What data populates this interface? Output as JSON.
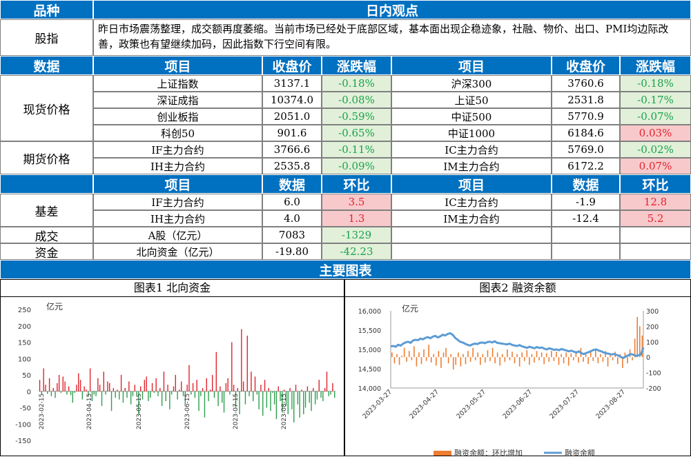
{
  "header": {
    "col1": "品种",
    "col2": "日内观点"
  },
  "stock_index_row": {
    "label": "股指",
    "text": "昨日市场震荡整理，成交额再度萎缩。当前市场已经处于底部区域，基本面出现企稳迹象，社融、物价、出口、PMI均边际改善，政策也有望继续加码，因此指数下行空间有限。"
  },
  "price_header": [
    "数据",
    "项目",
    "收盘价",
    "涨跌幅",
    "项目",
    "收盘价",
    "涨跌幅"
  ],
  "spot": {
    "label": "现货价格",
    "rows": [
      {
        "a": "上证指数",
        "ap": "3137.1",
        "ac": "-0.18%",
        "b": "沪深300",
        "bp": "3760.6",
        "bc": "-0.18%"
      },
      {
        "a": "深证成指",
        "ap": "10374.0",
        "ac": "-0.08%",
        "b": "上证50",
        "bp": "2531.8",
        "bc": "-0.17%"
      },
      {
        "a": "创业板指",
        "ap": "2051.0",
        "ac": "-0.59%",
        "b": "中证500",
        "bp": "5770.9",
        "bc": "-0.07%"
      },
      {
        "a": "科创50",
        "ap": "901.6",
        "ac": "-0.65%",
        "b": "中证1000",
        "bp": "6184.6",
        "bc": "0.03%"
      }
    ]
  },
  "futures": {
    "label": "期货价格",
    "rows": [
      {
        "a": "IF主力合约",
        "ap": "3766.6",
        "ac": "-0.11%",
        "b": "IC主力合约",
        "bp": "5769.0",
        "bc": "-0.02%"
      },
      {
        "a": "IH主力合约",
        "ap": "2535.8",
        "ac": "-0.09%",
        "b": "IM主力合约",
        "bp": "6172.2",
        "bc": "0.07%"
      }
    ]
  },
  "basis_header": [
    "项目",
    "数据",
    "环比",
    "项目",
    "数据",
    "环比"
  ],
  "basis": {
    "label": "基差",
    "rows": [
      {
        "a": "IF主力合约",
        "av": "6.0",
        "ac": "3.5",
        "b": "IC主力合约",
        "bv": "-1.9",
        "bc": "12.8"
      },
      {
        "a": "IH主力合约",
        "av": "4.0",
        "ac": "1.3",
        "b": "IM主力合约",
        "bv": "-12.4",
        "bc": "5.2"
      }
    ]
  },
  "volume": {
    "label": "成交",
    "item": "A股（亿元）",
    "value": "7083",
    "change": "-1329"
  },
  "funds": {
    "label": "资金",
    "item": "北向资金（亿元）",
    "value": "-19.80",
    "change": "-42.23"
  },
  "charts_header": "主要图表",
  "chart_data": [
    {
      "type": "bar",
      "title": "图表1  北向资金",
      "ylabel": "亿元",
      "ylim": [
        -150,
        250
      ],
      "yticks": [
        "250",
        "200",
        "150",
        "100",
        "50",
        "0",
        "-50",
        "-100",
        "-150"
      ],
      "xticks": [
        "2023-02-15",
        "2023-04-15",
        "2023-05-15",
        "2023-06-15",
        "2023-07-15",
        "2023-08-15"
      ],
      "colors": {
        "positive": "#e0232d",
        "negative": "#2e9e4d"
      },
      "values": [
        35,
        -10,
        70,
        20,
        -8,
        40,
        -15,
        10,
        -20,
        25,
        50,
        -5,
        45,
        30,
        -10,
        15,
        -12,
        -35,
        -5,
        20,
        55,
        35,
        -25,
        15,
        5,
        -15,
        70,
        -30,
        -10,
        -15,
        40,
        20,
        -45,
        60,
        -10,
        30,
        25,
        -60,
        10,
        -20,
        5,
        -25,
        50,
        -35,
        10,
        -20,
        30,
        -40,
        -15,
        20,
        -10,
        -70,
        15,
        -25,
        35,
        45,
        -30,
        -20,
        25,
        -5,
        40,
        -15,
        10,
        -45,
        60,
        -30,
        20,
        -55,
        -10,
        15,
        50,
        -25,
        5,
        30,
        -15,
        -40,
        20,
        80,
        -10,
        25,
        -20,
        35,
        -60,
        -15,
        10,
        -80,
        40,
        -30,
        5,
        50,
        -20,
        120,
        -45,
        15,
        -35,
        -65,
        25,
        40,
        -10,
        150,
        20,
        -50,
        10,
        -70,
        190,
        30,
        -40,
        170,
        -15,
        60,
        -30,
        45,
        -10,
        -55,
        20,
        -75,
        35,
        -50,
        10,
        -60,
        -5,
        -40,
        -85,
        15,
        -30,
        -65,
        5,
        -45,
        -70,
        10,
        -55,
        -95,
        20,
        -40,
        -80,
        5,
        -70,
        -50,
        15,
        -35,
        -60,
        10,
        -40,
        -25,
        35,
        -20,
        -30,
        10,
        60,
        -15,
        -10,
        25,
        -20
      ]
    },
    {
      "type": "bar+line",
      "title": "图表2  融资余额",
      "ylabel": "亿元",
      "ylim_left": [
        14000,
        16000
      ],
      "yticks_left": [
        "16,000",
        "15,500",
        "15,000",
        "14,500",
        "14,000"
      ],
      "ylim_right": [
        -200,
        300
      ],
      "yticks_right": [
        "300",
        "200",
        "100",
        "0",
        "-100",
        "-200"
      ],
      "xticks": [
        "2023-03-27",
        "2023-04-27",
        "2023-05-27",
        "2023-06-27",
        "2023-07-27",
        "2023-08-27"
      ],
      "legend": [
        "融资余额：环比增加",
        "融资余额"
      ],
      "colors": {
        "bars": "#ed7d31",
        "line": "#5b9bd5"
      },
      "balance": [
        15080,
        15090,
        15070,
        15120,
        15100,
        15150,
        15180,
        15200,
        15170,
        15230,
        15250,
        15240,
        15280,
        15260,
        15300,
        15320,
        15290,
        15330,
        15350,
        15310,
        15340,
        15380,
        15360,
        15400,
        15420,
        15380,
        15300,
        15250,
        15200,
        15180,
        15150,
        15120,
        15100,
        15130,
        15150,
        15140,
        15170,
        15180,
        15160,
        15190,
        15200,
        15180,
        15210,
        15170,
        15160,
        15150,
        15140,
        15130,
        15150,
        15120,
        15100,
        15090,
        15110,
        15080,
        15060,
        15040,
        15070,
        15050,
        15030,
        15060,
        15040,
        15050,
        15020,
        15000,
        15030,
        15010,
        14990,
        15000,
        14980,
        15010,
        14990,
        14970,
        14950,
        14970,
        14940,
        14920,
        14950,
        14900,
        14880,
        14910,
        14930,
        14960,
        14990,
        15000,
        14970,
        14950,
        14920,
        14900,
        14890,
        14870,
        14880,
        14860,
        14840,
        14800,
        14780,
        14820,
        14850,
        14880,
        14860,
        14830,
        14850,
        14870,
        15050
      ],
      "change": [
        30,
        -40,
        20,
        -50,
        10,
        60,
        -30,
        40,
        -20,
        70,
        -60,
        30,
        -45,
        50,
        -25,
        80,
        -35,
        20,
        -55,
        40,
        -70,
        30,
        60,
        -40,
        20,
        -80,
        -50,
        30,
        -60,
        20,
        -45,
        40,
        -30,
        60,
        -20,
        30,
        -50,
        20,
        -35,
        45,
        -25,
        60,
        -40,
        30,
        -55,
        20,
        -30,
        50,
        -20,
        35,
        -40,
        20,
        -60,
        30,
        -25,
        45,
        -50,
        20,
        -35,
        40,
        -20,
        30,
        -45,
        25,
        -30,
        40,
        -25,
        35,
        -50,
        20,
        -40,
        30,
        -55,
        25,
        -20,
        40,
        -35,
        60,
        -30,
        20,
        -45,
        35,
        -25,
        50,
        -40,
        20,
        -30,
        40,
        -60,
        25,
        -20,
        35,
        -45,
        20,
        -70,
        30,
        -40,
        50,
        -20,
        120,
        260,
        200,
        140
      ]
    }
  ]
}
